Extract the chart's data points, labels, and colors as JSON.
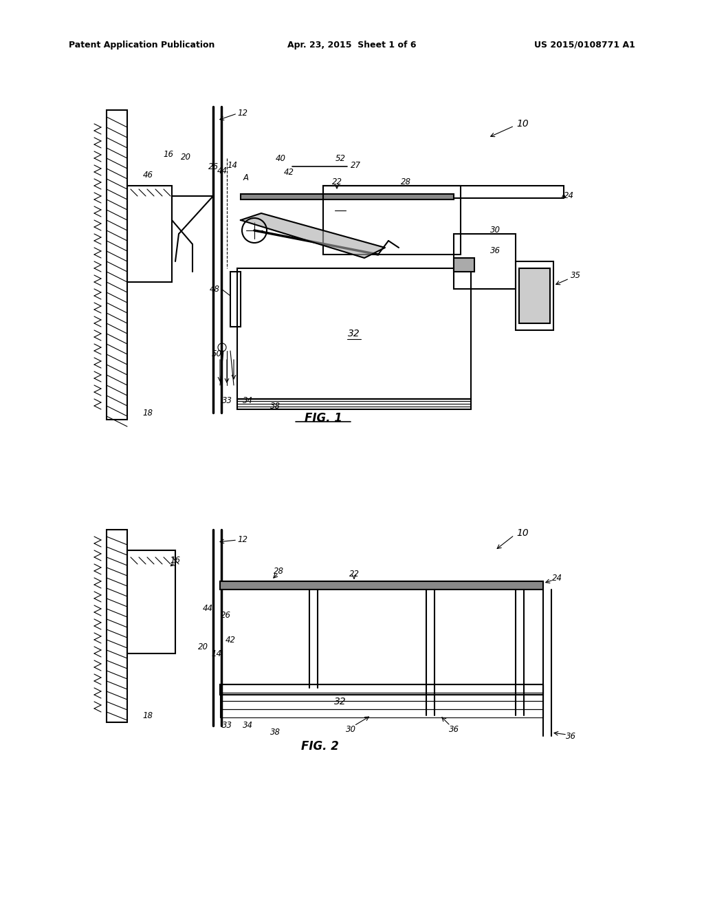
{
  "bg_color": "#ffffff",
  "header_left": "Patent Application Publication",
  "header_center": "Apr. 23, 2015  Sheet 1 of 6",
  "header_right": "US 2015/0108771 A1",
  "fig1_label": "FIG. 1",
  "fig2_label": "FIG. 2",
  "line_color": "#000000",
  "line_width": 1.5,
  "thin_lw": 0.8,
  "thick_lw": 2.5
}
